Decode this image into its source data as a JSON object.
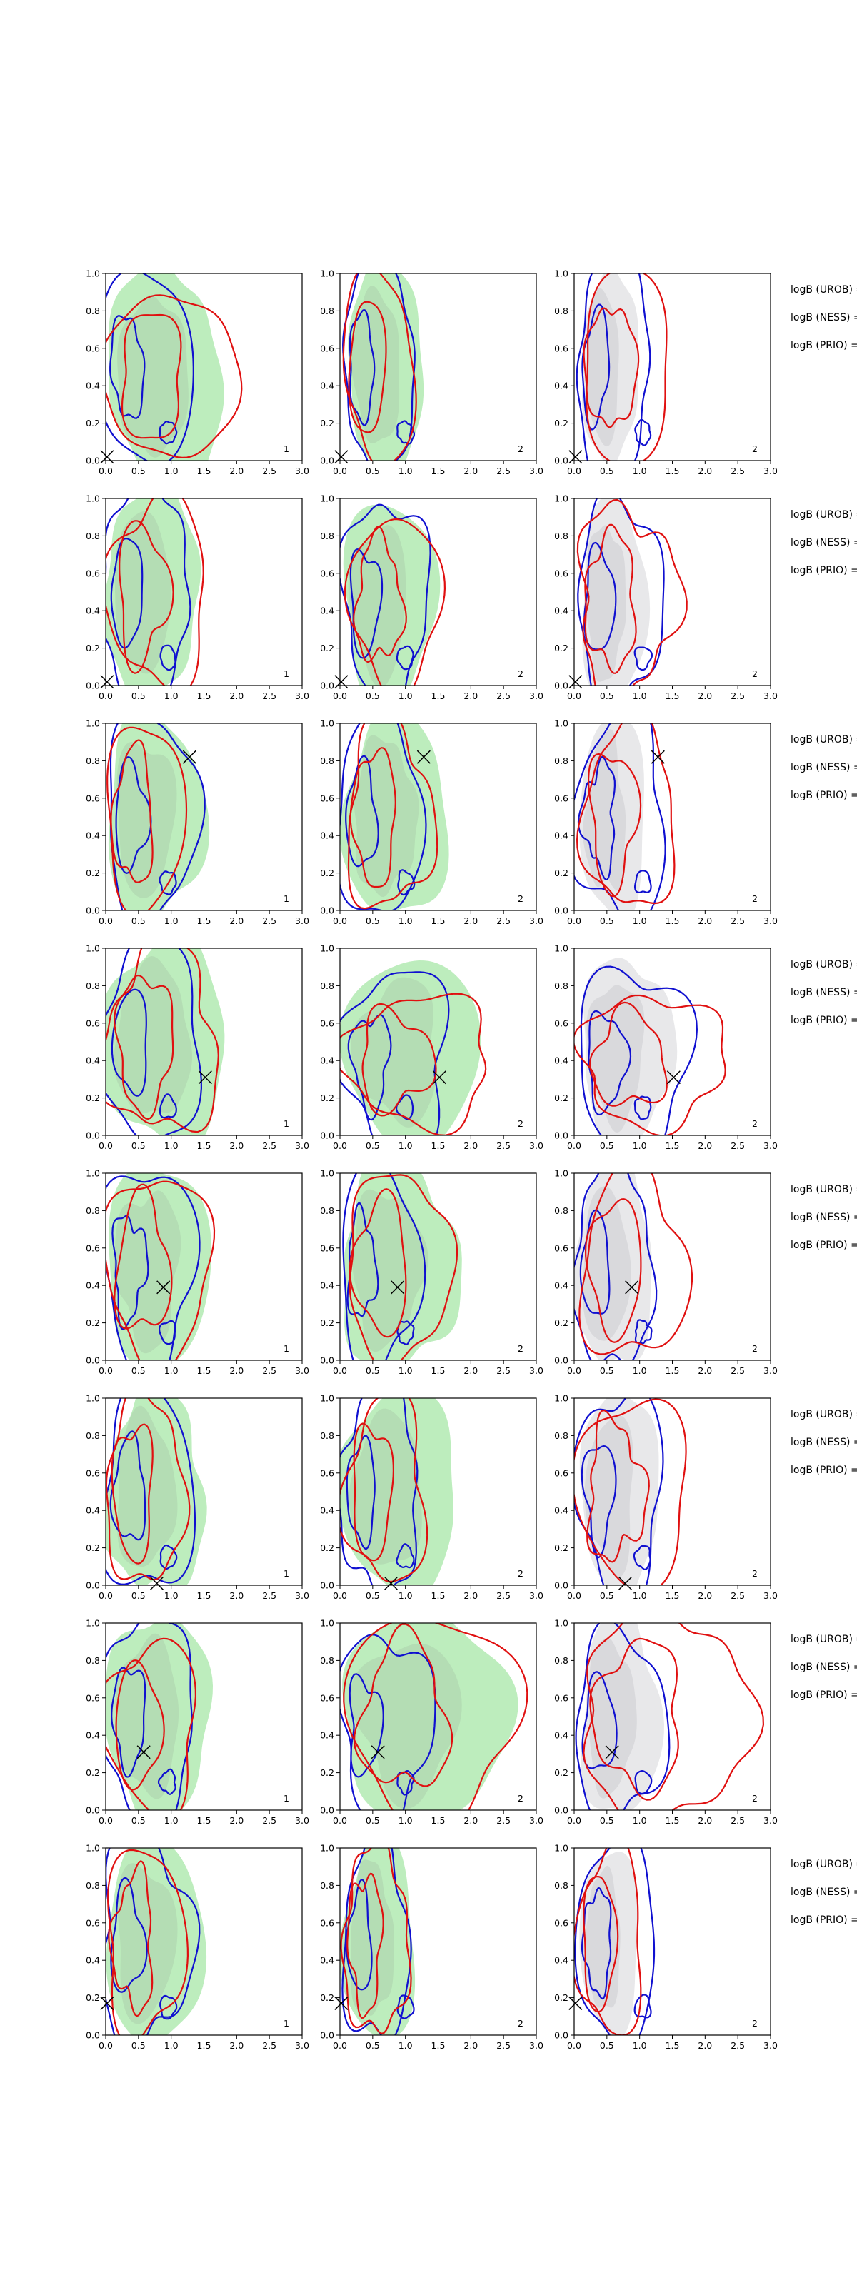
{
  "chart_data": {
    "type": "contour",
    "xlim": [
      0,
      3
    ],
    "ylim": [
      0,
      1
    ],
    "xticks": [
      "0.0",
      "0.5",
      "1.0",
      "1.5",
      "2.0",
      "2.5",
      "3.0"
    ],
    "yticks": [
      "0.0",
      "0.2",
      "0.4",
      "0.6",
      "0.8",
      "1.0"
    ],
    "colors": {
      "green_fill": "#7bdc7b",
      "green_fill_inner": "#a9c9a9",
      "gray_fill": "#d6d6d8",
      "blue_line": "#1010d0",
      "red_line": "#e01010",
      "marker": "#000000"
    },
    "panel_labels": [
      "1",
      "2",
      "2"
    ],
    "legend_lines": [
      "logB (UROB) =",
      "logB (NESS) =",
      "logB (PRIO) ="
    ],
    "rows": [
      {
        "marker": [
          0.02,
          0.02
        ]
      },
      {
        "marker": [
          0.02,
          0.02
        ]
      },
      {
        "marker": [
          1.28,
          0.82
        ]
      },
      {
        "marker": [
          1.52,
          0.31
        ]
      },
      {
        "marker": [
          0.88,
          0.39
        ]
      },
      {
        "marker": [
          0.78,
          0.01
        ]
      },
      {
        "marker": [
          0.58,
          0.31
        ]
      },
      {
        "marker": [
          0.02,
          0.17
        ]
      }
    ]
  }
}
